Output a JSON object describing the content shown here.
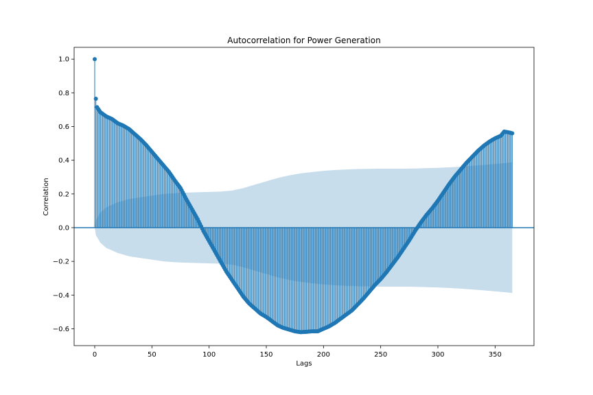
{
  "chart_data": {
    "type": "stem",
    "title": "Autocorrelation for Power Generation",
    "xlabel": "Lags",
    "ylabel": "Correlation",
    "xlim": [
      -18,
      384
    ],
    "ylim": [
      -0.7,
      1.07
    ],
    "xticks": [
      0,
      50,
      100,
      150,
      200,
      250,
      300,
      350
    ],
    "xtick_labels": [
      "0",
      "50",
      "100",
      "150",
      "200",
      "250",
      "300",
      "350"
    ],
    "yticks": [
      -0.6,
      -0.4,
      -0.2,
      0.0,
      0.2,
      0.4,
      0.6,
      0.8,
      1.0
    ],
    "ytick_labels": [
      "−0.6",
      "−0.4",
      "−0.2",
      "0.0",
      "0.2",
      "0.4",
      "0.6",
      "0.8",
      "1.0"
    ],
    "grid": false,
    "max_lag": 365,
    "acf_anchors": [
      [
        0,
        1.0
      ],
      [
        1,
        0.765
      ],
      [
        2,
        0.715
      ],
      [
        3,
        0.705
      ],
      [
        5,
        0.685
      ],
      [
        10,
        0.66
      ],
      [
        15,
        0.645
      ],
      [
        20,
        0.62
      ],
      [
        25,
        0.605
      ],
      [
        30,
        0.585
      ],
      [
        35,
        0.555
      ],
      [
        40,
        0.525
      ],
      [
        45,
        0.49
      ],
      [
        50,
        0.45
      ],
      [
        55,
        0.41
      ],
      [
        60,
        0.37
      ],
      [
        65,
        0.33
      ],
      [
        70,
        0.28
      ],
      [
        75,
        0.235
      ],
      [
        80,
        0.17
      ],
      [
        85,
        0.11
      ],
      [
        90,
        0.05
      ],
      [
        95,
        -0.02
      ],
      [
        100,
        -0.08
      ],
      [
        105,
        -0.14
      ],
      [
        110,
        -0.2
      ],
      [
        115,
        -0.26
      ],
      [
        120,
        -0.31
      ],
      [
        125,
        -0.36
      ],
      [
        130,
        -0.41
      ],
      [
        135,
        -0.45
      ],
      [
        140,
        -0.48
      ],
      [
        145,
        -0.51
      ],
      [
        150,
        -0.53
      ],
      [
        155,
        -0.555
      ],
      [
        160,
        -0.58
      ],
      [
        165,
        -0.595
      ],
      [
        170,
        -0.605
      ],
      [
        175,
        -0.615
      ],
      [
        180,
        -0.62
      ],
      [
        185,
        -0.618
      ],
      [
        190,
        -0.615
      ],
      [
        195,
        -0.615
      ],
      [
        200,
        -0.6
      ],
      [
        205,
        -0.585
      ],
      [
        210,
        -0.565
      ],
      [
        215,
        -0.54
      ],
      [
        220,
        -0.515
      ],
      [
        225,
        -0.49
      ],
      [
        230,
        -0.455
      ],
      [
        235,
        -0.42
      ],
      [
        240,
        -0.38
      ],
      [
        245,
        -0.34
      ],
      [
        250,
        -0.305
      ],
      [
        255,
        -0.265
      ],
      [
        260,
        -0.22
      ],
      [
        265,
        -0.175
      ],
      [
        270,
        -0.125
      ],
      [
        275,
        -0.075
      ],
      [
        280,
        -0.02
      ],
      [
        285,
        0.03
      ],
      [
        290,
        0.075
      ],
      [
        295,
        0.115
      ],
      [
        300,
        0.16
      ],
      [
        305,
        0.21
      ],
      [
        310,
        0.26
      ],
      [
        315,
        0.305
      ],
      [
        320,
        0.345
      ],
      [
        325,
        0.385
      ],
      [
        330,
        0.42
      ],
      [
        335,
        0.455
      ],
      [
        340,
        0.485
      ],
      [
        345,
        0.51
      ],
      [
        350,
        0.53
      ],
      [
        355,
        0.545
      ],
      [
        358,
        0.57
      ],
      [
        362,
        0.565
      ],
      [
        365,
        0.56
      ]
    ],
    "confidence_upper_anchors": [
      [
        0,
        0.0
      ],
      [
        1,
        0.045
      ],
      [
        5,
        0.09
      ],
      [
        10,
        0.12
      ],
      [
        20,
        0.15
      ],
      [
        30,
        0.17
      ],
      [
        40,
        0.18
      ],
      [
        50,
        0.19
      ],
      [
        60,
        0.2
      ],
      [
        70,
        0.205
      ],
      [
        80,
        0.208
      ],
      [
        90,
        0.21
      ],
      [
        100,
        0.212
      ],
      [
        110,
        0.214
      ],
      [
        120,
        0.22
      ],
      [
        130,
        0.235
      ],
      [
        140,
        0.255
      ],
      [
        150,
        0.275
      ],
      [
        160,
        0.295
      ],
      [
        170,
        0.31
      ],
      [
        180,
        0.322
      ],
      [
        190,
        0.33
      ],
      [
        200,
        0.337
      ],
      [
        210,
        0.342
      ],
      [
        220,
        0.345
      ],
      [
        230,
        0.348
      ],
      [
        240,
        0.349
      ],
      [
        250,
        0.35
      ],
      [
        260,
        0.35
      ],
      [
        270,
        0.35
      ],
      [
        280,
        0.351
      ],
      [
        290,
        0.353
      ],
      [
        300,
        0.355
      ],
      [
        310,
        0.358
      ],
      [
        320,
        0.362
      ],
      [
        330,
        0.367
      ],
      [
        340,
        0.372
      ],
      [
        350,
        0.378
      ],
      [
        360,
        0.384
      ],
      [
        365,
        0.388
      ]
    ],
    "colors": {
      "stem": "#1f77b4",
      "band": "#1f77b4",
      "band_opacity": 0.25,
      "zero_line": "#1f77b4"
    }
  }
}
